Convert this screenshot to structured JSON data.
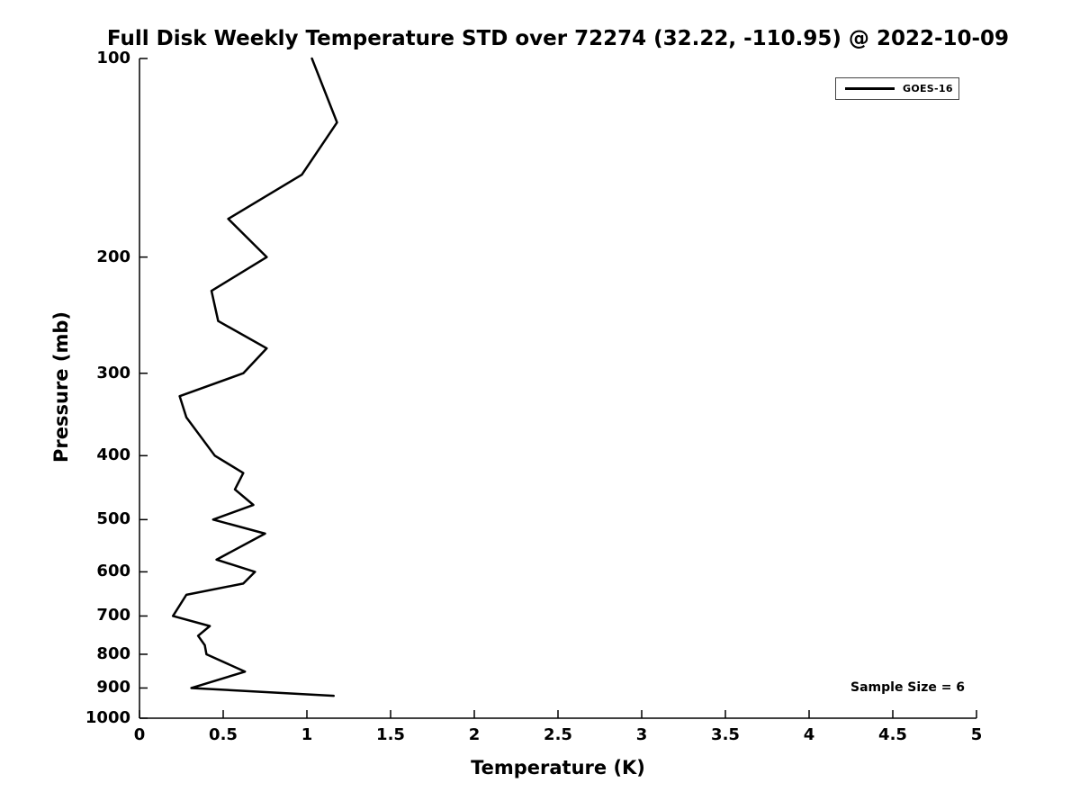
{
  "figure": {
    "background": "#ffffff",
    "line_color": "#000000"
  },
  "chart_data": {
    "type": "line",
    "title": "Full Disk Weekly Temperature STD over 72274 (32.22, -110.95) @ 2022-10-09",
    "xlabel": "Temperature (K)",
    "ylabel": "Pressure (mb)",
    "xlim": [
      0,
      5
    ],
    "ylim": [
      100,
      1000
    ],
    "y_scale": "log",
    "y_direction": "reversed",
    "grid": false,
    "xticks": [
      0,
      0.5,
      1,
      1.5,
      2,
      2.5,
      3,
      3.5,
      4,
      4.5,
      5
    ],
    "yticks": [
      100,
      200,
      300,
      400,
      500,
      600,
      700,
      800,
      900,
      1000
    ],
    "legend": {
      "position": "top-right",
      "entries": [
        "GOES-16"
      ]
    },
    "series": [
      {
        "name": "GOES-16",
        "color": "#000000",
        "line_width": 2.5,
        "pressure_mb": [
          100,
          125,
          150,
          175,
          200,
          225,
          250,
          275,
          300,
          325,
          350,
          400,
          425,
          450,
          475,
          500,
          525,
          575,
          600,
          625,
          650,
          700,
          725,
          750,
          775,
          800,
          850,
          900,
          925
        ],
        "temperature_k": [
          1.03,
          1.18,
          0.97,
          0.53,
          0.76,
          0.43,
          0.47,
          0.76,
          0.62,
          0.24,
          0.28,
          0.45,
          0.62,
          0.57,
          0.68,
          0.44,
          0.75,
          0.46,
          0.69,
          0.62,
          0.28,
          0.2,
          0.42,
          0.35,
          0.39,
          0.4,
          0.63,
          0.31,
          1.16
        ]
      }
    ],
    "annotations": [
      {
        "text": "Sample Size = 6"
      }
    ]
  }
}
